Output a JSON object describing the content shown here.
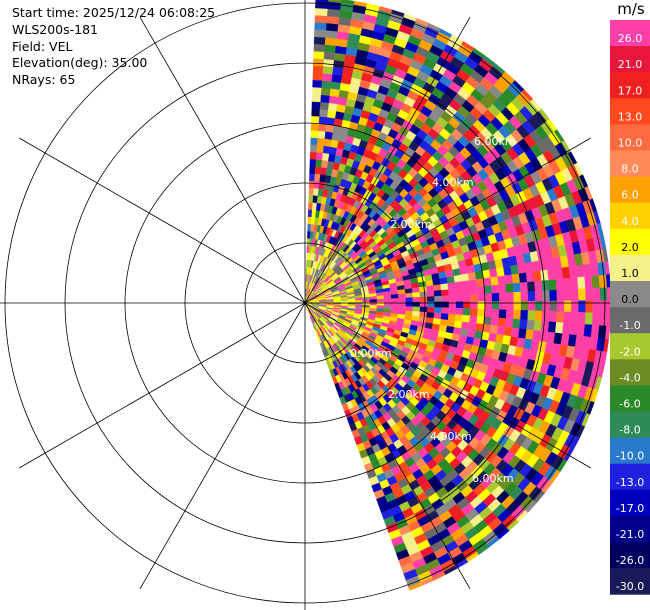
{
  "header": {
    "start_time": "Start time: 2025/12/24 06:08:25",
    "instrument": "WLS200s-181",
    "field": "Field: VEL",
    "elevation": "Elevation(deg): 35.00",
    "nrays": "NRays: 65"
  },
  "range_rings": {
    "labels_upper": [
      "2.00km",
      "4.00km",
      "6.00km"
    ],
    "labels_lower": [
      "0.00km",
      "2.00km",
      "4.00km",
      "6.00km"
    ]
  },
  "colorbar": {
    "unit": "m/s",
    "bands": [
      {
        "label": "26.0",
        "color": "#ff3fa8"
      },
      {
        "label": "21.0",
        "color": "#e8163a"
      },
      {
        "label": "17.0",
        "color": "#f02020"
      },
      {
        "label": "13.0",
        "color": "#ff4a20"
      },
      {
        "label": "10.0",
        "color": "#ff6a40"
      },
      {
        "label": "8.0",
        "color": "#ff8a5a"
      },
      {
        "label": "6.0",
        "color": "#ffa000"
      },
      {
        "label": "4.0",
        "color": "#ffd000"
      },
      {
        "label": "2.0",
        "color": "#ffff00"
      },
      {
        "label": "1.0",
        "color": "#f5f08a"
      },
      {
        "label": "0.0",
        "color": "#8a8a8a"
      },
      {
        "label": "-1.0",
        "color": "#6a6a6a"
      },
      {
        "label": "-2.0",
        "color": "#a8c830"
      },
      {
        "label": "-4.0",
        "color": "#6b8c22"
      },
      {
        "label": "-6.0",
        "color": "#2a8a2a"
      },
      {
        "label": "-8.0",
        "color": "#2e8b57"
      },
      {
        "label": "-10.0",
        "color": "#2a7acb"
      },
      {
        "label": "-13.0",
        "color": "#2020e0"
      },
      {
        "label": "-17.0",
        "color": "#0000c0"
      },
      {
        "label": "-21.0",
        "color": "#00008a"
      },
      {
        "label": "-26.0",
        "color": "#000060"
      },
      {
        "label": "-30.0",
        "color": "#1a1a5a"
      }
    ]
  }
}
